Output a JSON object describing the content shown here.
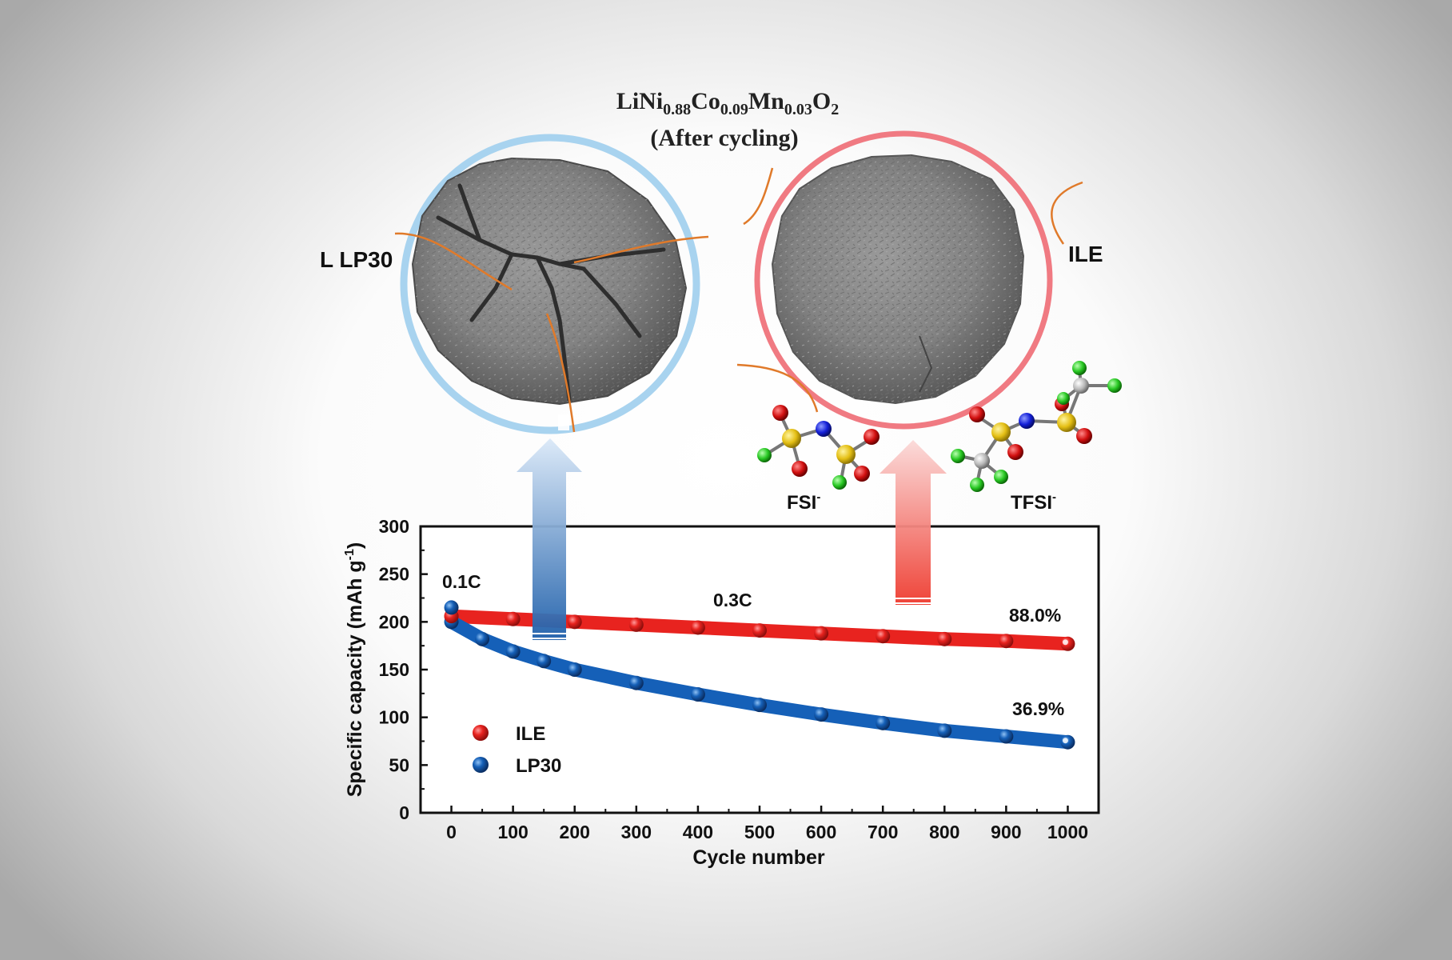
{
  "figure": {
    "title": {
      "line1_parts": [
        {
          "t": "LiNi",
          "sub": false
        },
        {
          "t": "0.88",
          "sub": true
        },
        {
          "t": "Co",
          "sub": false
        },
        {
          "t": "0.09",
          "sub": true
        },
        {
          "t": "Mn",
          "sub": false
        },
        {
          "t": "0.03",
          "sub": true
        },
        {
          "t": "O",
          "sub": false
        },
        {
          "t": "2",
          "sub": true
        }
      ],
      "line2": "(After cycling)"
    },
    "left_particle_label": "L LP30",
    "right_particle_label": "ILE",
    "anion_fsi": {
      "base": "FSI",
      "sup": "-"
    },
    "anion_tfsi": {
      "base": "TFSI",
      "sup": "-"
    },
    "colors": {
      "ile": "#e8231f",
      "lp30": "#1560b8",
      "ring_blue": "#a8d3ef",
      "ring_red": "#f07a82",
      "crack_line": "#e07a2a",
      "particle_gray": "#8a8a8a"
    }
  },
  "chart_data": {
    "type": "scatter",
    "xlabel": "Cycle number",
    "ylabel": "Specific capacity (mAh g",
    "ylabel_sup": "-1",
    "ylabel_close": ")",
    "xlim": [
      -50,
      1050
    ],
    "ylim": [
      0,
      300
    ],
    "xticks": [
      "0",
      "100",
      "200",
      "300",
      "400",
      "500",
      "600",
      "700",
      "800",
      "900",
      "1000"
    ],
    "yticks": [
      "0",
      "50",
      "100",
      "150",
      "200",
      "250",
      "300"
    ],
    "legend_position": "lower-left",
    "series": [
      {
        "name": "ILE",
        "color": "#e8231f",
        "x": [
          0,
          100,
          200,
          300,
          400,
          500,
          600,
          700,
          800,
          900,
          1000
        ],
        "y": [
          206,
          203,
          200,
          197,
          194,
          191,
          188,
          185,
          182,
          180,
          177
        ]
      },
      {
        "name": "LP30",
        "color": "#1560b8",
        "x": [
          0,
          50,
          100,
          150,
          200,
          300,
          400,
          500,
          600,
          700,
          800,
          900,
          1000
        ],
        "y": [
          200,
          182,
          169,
          159,
          150,
          136,
          124,
          113,
          103,
          94,
          86,
          80,
          74
        ]
      }
    ],
    "first_points": [
      {
        "series": "ILE",
        "x": 0,
        "y": 206
      },
      {
        "series": "LP30",
        "x": 0,
        "y": 215
      }
    ],
    "annotations": {
      "rate_initial": "0.1C",
      "rate_main": "0.3C",
      "retention_ile": "88.0%",
      "retention_lp30": "36.9%"
    }
  }
}
